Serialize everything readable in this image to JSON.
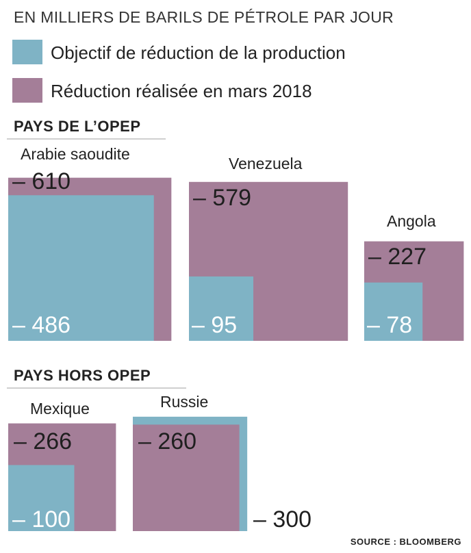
{
  "unit_label": "EN MILLIERS DE BARILS DE PÉTROLE PAR JOUR",
  "legend": [
    {
      "key": "target",
      "label": "Objectif de réduction de la production",
      "color": "#7fb3c5"
    },
    {
      "key": "actual",
      "label": "Réduction réalisée en mars 2018",
      "color": "#a47e98"
    }
  ],
  "sections": {
    "opep": "PAYS DE L’OPEP",
    "non_opep": "PAYS HORS OPEP"
  },
  "source": "SOURCE : BLOOMBERG",
  "chart_data": {
    "type": "area",
    "unit": "milliers de barils de pétrole par jour",
    "series": [
      {
        "key": "target",
        "name": "Objectif de réduction de la production"
      },
      {
        "key": "actual",
        "name": "Réduction réalisée en mars 2018"
      }
    ],
    "groups": [
      {
        "name": "PAYS DE L’OPEP",
        "countries": [
          {
            "country": "Arabie saoudite",
            "target": -486,
            "actual": -610,
            "target_label": "– 486",
            "actual_label": "– 610"
          },
          {
            "country": "Venezuela",
            "target": -95,
            "actual": -579,
            "target_label": "– 95",
            "actual_label": "– 579"
          },
          {
            "country": "Angola",
            "target": -78,
            "actual": -227,
            "target_label": "– 78",
            "actual_label": "– 227"
          }
        ]
      },
      {
        "name": "PAYS HORS OPEP",
        "countries": [
          {
            "country": "Mexique",
            "target": -100,
            "actual": -266,
            "target_label": "– 100",
            "actual_label": "– 266"
          },
          {
            "country": "Russie",
            "target": -300,
            "actual": -260,
            "target_label": "– 300",
            "actual_label": "– 260"
          }
        ]
      }
    ]
  }
}
